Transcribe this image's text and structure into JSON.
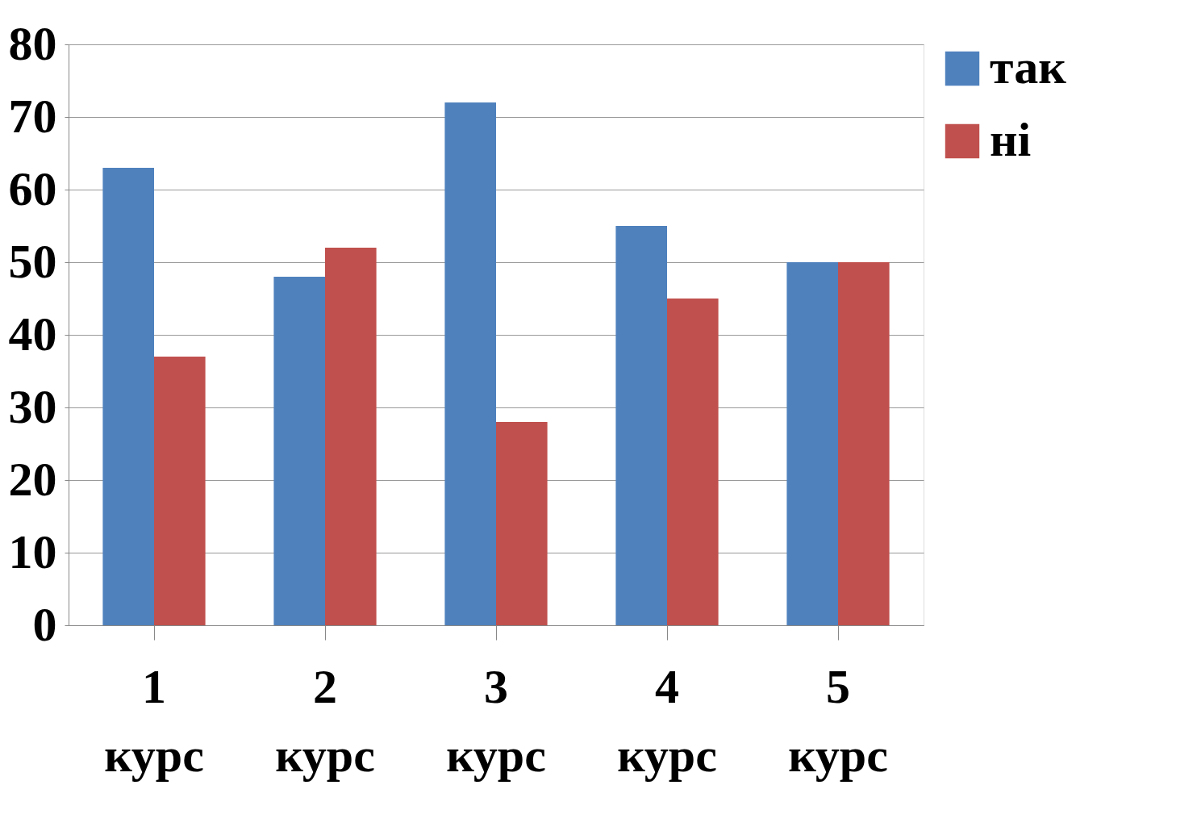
{
  "chart_data": {
    "type": "bar",
    "categories": [
      "1 курс",
      "2 курс",
      "3 курс",
      "4 курс",
      "5 курс"
    ],
    "series": [
      {
        "name": "так",
        "color": "#4f81bd",
        "values": [
          63,
          48,
          72,
          55,
          50
        ]
      },
      {
        "name": "ні",
        "color": "#c0504d",
        "values": [
          37,
          52,
          28,
          45,
          50
        ]
      }
    ],
    "ylim": [
      0,
      80
    ],
    "yticks": [
      0,
      10,
      20,
      30,
      40,
      50,
      60,
      70,
      80
    ],
    "grid": "y",
    "legend": "top right"
  }
}
